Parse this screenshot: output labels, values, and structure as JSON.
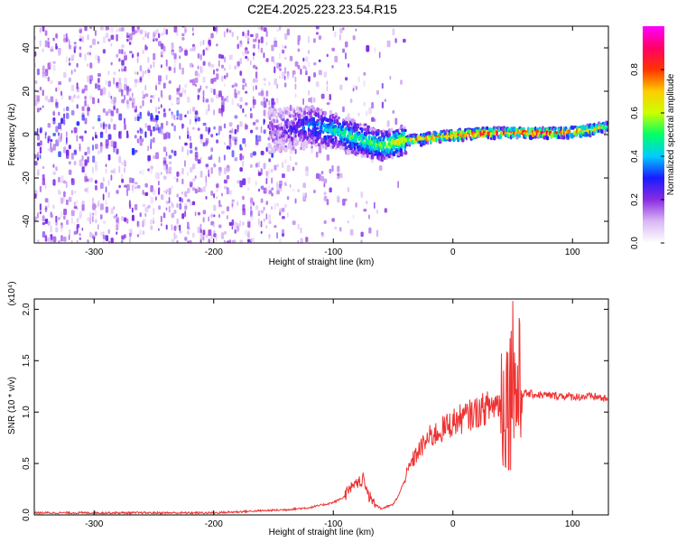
{
  "title": "C2E4.2025.223.23.54.R15",
  "chart_data": [
    {
      "type": "heatmap",
      "xlabel": "Height of straight line (km)",
      "ylabel": "Frequency (Hz)",
      "xlim": [
        -350,
        130
      ],
      "ylim": [
        -50,
        50
      ],
      "xticks": [
        -300,
        -200,
        -100,
        0,
        100
      ],
      "xtick_labels": [
        "-300",
        "-200",
        "-100",
        "0",
        "100"
      ],
      "yticks": [
        -40,
        -20,
        0,
        20,
        40
      ],
      "ytick_labels": [
        "-40",
        "-20",
        "0",
        "20",
        "40"
      ],
      "colorbar": {
        "label": "Normalized spectral amplitude",
        "range": [
          0,
          1
        ],
        "ticks": [
          0.0,
          0.2,
          0.4,
          0.6,
          0.8
        ],
        "tick_labels": [
          "0.0",
          "0.2",
          "0.4",
          "0.6",
          "0.8"
        ],
        "colors": [
          "#ffffff",
          "#d9b8f5",
          "#8a2be2",
          "#1a1aff",
          "#00ccff",
          "#00ff66",
          "#ccff00",
          "#ffcc00",
          "#ff3300",
          "#ff0066",
          "#ff00ff"
        ]
      },
      "ridge": {
        "x": [
          -150,
          -120,
          -100,
          -80,
          -60,
          -45,
          -30,
          0,
          30,
          60,
          90,
          110,
          130
        ],
        "frequency": [
          2,
          4,
          2,
          -2,
          -5,
          -3,
          -2,
          0,
          1,
          1,
          1,
          2,
          4
        ],
        "amplitude": [
          0.15,
          0.35,
          0.45,
          0.5,
          0.55,
          0.65,
          0.75,
          0.85,
          0.9,
          0.9,
          0.85,
          0.8,
          0.6
        ]
      },
      "grid": false
    },
    {
      "type": "line",
      "xlabel": "Height of straight line (km)",
      "ylabel": "SNR (10 * v/v)",
      "ylabel_multiplier": "(x10⁴)",
      "xlim": [
        -350,
        130
      ],
      "ylim": [
        0,
        2.1
      ],
      "xticks": [
        -300,
        -200,
        -100,
        0,
        100
      ],
      "xtick_labels": [
        "-300",
        "-200",
        "-100",
        "0",
        "100"
      ],
      "yticks": [
        0.0,
        0.5,
        1.0,
        1.5,
        2.0
      ],
      "ytick_labels": [
        "0.0",
        "0.5",
        "1.0",
        "1.5",
        "2.0"
      ],
      "color": "#ee3333",
      "series": [
        {
          "x": [
            -350,
            -300,
            -250,
            -200,
            -180,
            -160,
            -140,
            -120,
            -100,
            -90,
            -80,
            -75,
            -70,
            -60,
            -50,
            -45,
            -40,
            -35,
            -30,
            -20,
            -10,
            0,
            10,
            20,
            30,
            40,
            45,
            50,
            55,
            60,
            70,
            80,
            90,
            100,
            110,
            120,
            130
          ],
          "values": [
            0.02,
            0.02,
            0.02,
            0.02,
            0.03,
            0.04,
            0.05,
            0.07,
            0.12,
            0.18,
            0.28,
            0.32,
            0.15,
            0.06,
            0.1,
            0.2,
            0.35,
            0.5,
            0.6,
            0.75,
            0.82,
            0.9,
            0.95,
            1.0,
            1.05,
            1.1,
            1.15,
            1.2,
            1.2,
            1.18,
            1.17,
            1.16,
            1.16,
            1.15,
            1.15,
            1.15,
            1.12
          ]
        }
      ],
      "grid": false
    }
  ]
}
